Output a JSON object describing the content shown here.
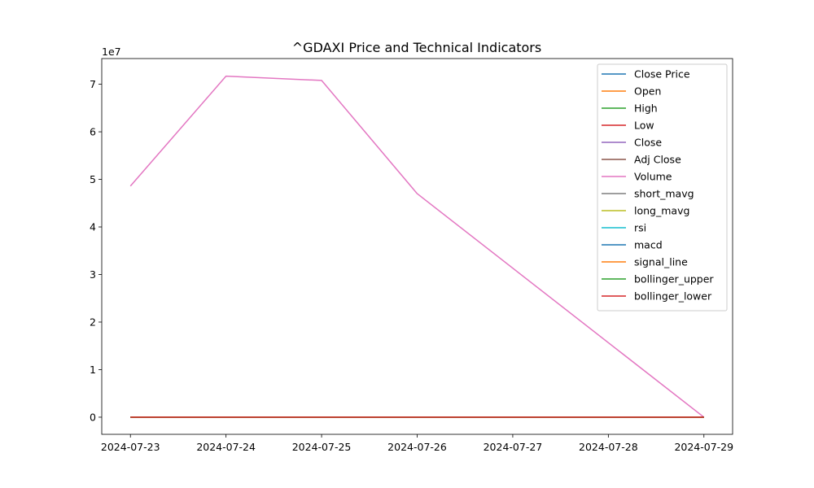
{
  "chart_data": {
    "type": "line",
    "title": "^GDAXI Price and Technical Indicators",
    "xlabel": "",
    "ylabel": "",
    "y_scale_label": "1e7",
    "x_ticks": [
      "2024-07-23",
      "2024-07-24",
      "2024-07-25",
      "2024-07-26",
      "2024-07-27",
      "2024-07-28",
      "2024-07-29"
    ],
    "y_ticks": [
      "0",
      "1",
      "2",
      "3",
      "4",
      "5",
      "6",
      "7"
    ],
    "x": [
      "2024-07-23",
      "2024-07-24",
      "2024-07-25",
      "2024-07-26",
      "2024-07-29"
    ],
    "xlim": [
      "2024-07-22T16:48",
      "2024-07-29T07:12"
    ],
    "ylim": [
      -3600000,
      75400000
    ],
    "grid": false,
    "legend_position": "top-right",
    "series": [
      {
        "name": "Close Price",
        "color": "#1f77b4",
        "values": [
          18557.7,
          18387.5,
          18298.7,
          18417.6,
          18320.7
        ]
      },
      {
        "name": "Open",
        "color": "#ff7f0e",
        "values": [
          18389.5,
          18589.9,
          18161.5,
          18400.2,
          18436.6
        ]
      },
      {
        "name": "High",
        "color": "#2ca02c",
        "values": [
          18571.0,
          18618.9,
          18350.2,
          18461.3,
          18456.9
        ]
      },
      {
        "name": "Low",
        "color": "#d62728",
        "values": [
          18376.1,
          18377.4,
          18158.8,
          18309.8,
          18300.8
        ]
      },
      {
        "name": "Close",
        "color": "#9467bd",
        "values": [
          18557.7,
          18387.5,
          18298.7,
          18417.6,
          18320.7
        ]
      },
      {
        "name": "Adj Close",
        "color": "#8c564b",
        "values": [
          18557.7,
          18387.5,
          18298.7,
          18417.6,
          18320.7
        ]
      },
      {
        "name": "Volume",
        "color": "#e377c2",
        "values": [
          48600000,
          71700000,
          70800000,
          47000000,
          0
        ]
      },
      {
        "name": "short_mavg",
        "color": "#7f7f7f",
        "values": [
          18557.7,
          18472.6,
          18414.6,
          18415.4,
          18396.4
        ]
      },
      {
        "name": "long_mavg",
        "color": "#bcbd22",
        "values": [
          18557.7,
          18472.6,
          18414.6,
          18415.4,
          18396.4
        ]
      },
      {
        "name": "rsi",
        "color": "#17becf",
        "values": [
          50,
          50,
          50,
          50,
          50
        ]
      },
      {
        "name": "macd",
        "color": "#1f77b4",
        "values": [
          0,
          -13.6,
          -31.2,
          -35.4,
          -46.1
        ]
      },
      {
        "name": "signal_line",
        "color": "#ff7f0e",
        "values": [
          0,
          -2.7,
          -8.4,
          -13.8,
          -20.3
        ]
      },
      {
        "name": "bollinger_upper",
        "color": "#2ca02c",
        "values": [
          18557.7,
          18557.7,
          18557.7,
          18557.7,
          18557.7
        ]
      },
      {
        "name": "bollinger_lower",
        "color": "#d62728",
        "values": [
          18298.7,
          18298.7,
          18298.7,
          18298.7,
          18298.7
        ]
      }
    ]
  }
}
